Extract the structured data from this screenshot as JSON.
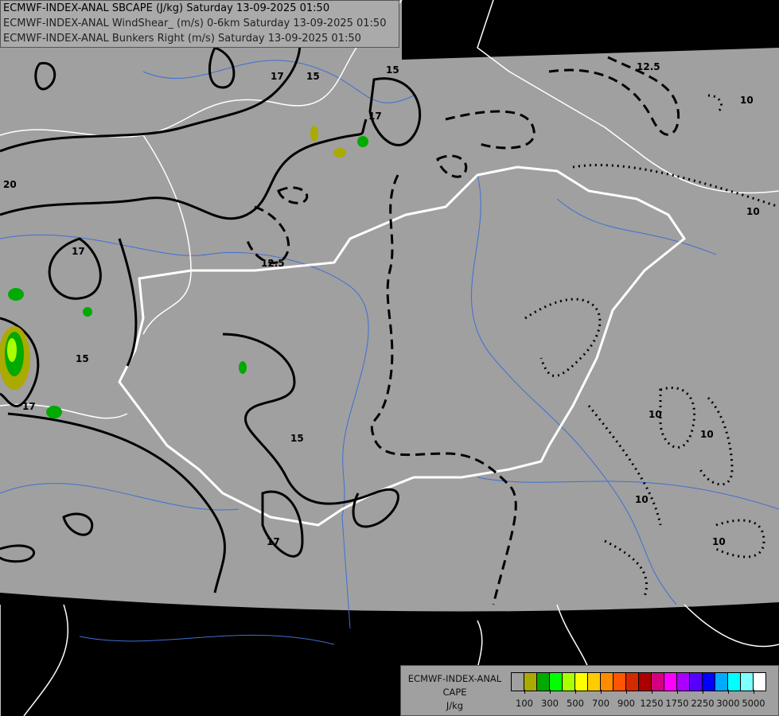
{
  "header": {
    "line1": "ECMWF-INDEX-ANAL SBCAPE (J/kg) Saturday 13-09-2025 01:50",
    "line2": "ECMWF-INDEX-ANAL WindShear_ (m/s) 0-6km Saturday 13-09-2025 01:50",
    "line3": "ECMWF-INDEX-ANAL Bunkers Right (m/s) Saturday 13-09-2025 01:50"
  },
  "legend": {
    "title1": "ECMWF-INDEX-ANAL",
    "title2": "CAPE",
    "unit": "J/kg",
    "colors": [
      "#a0a0a0",
      "#aaaa00",
      "#00aa00",
      "#00ff00",
      "#aaff00",
      "#ffff00",
      "#ffcc00",
      "#ff8c00",
      "#ff5500",
      "#d42a00",
      "#aa0000",
      "#d4007f",
      "#ff00ff",
      "#aa00ff",
      "#5500ff",
      "#0000ff",
      "#00aaff",
      "#00ffff",
      "#80ffff",
      "#ffffff"
    ],
    "tick_labels": [
      "100",
      "300",
      "500",
      "700",
      "900",
      "1250",
      "1750",
      "2250",
      "3000",
      "5000"
    ]
  },
  "contour_labels": {
    "solid": [
      "17",
      "15",
      "15",
      "17",
      "20",
      "17",
      "15",
      "15",
      "17",
      "17"
    ],
    "dashed": [
      "12.5",
      "12.5"
    ],
    "dotted": [
      "10",
      "10",
      "10",
      "10",
      "10",
      "10"
    ]
  },
  "colors": {
    "domain_fill": "#a0a0a0",
    "outside": "#000000",
    "borders": "#ffffff",
    "rivers": "#3f6fd0"
  }
}
